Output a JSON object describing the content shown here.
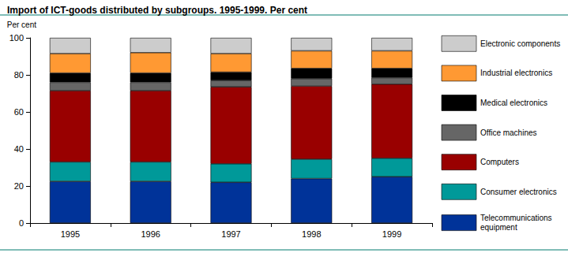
{
  "chart_data": {
    "type": "bar",
    "title": "Import of ICT-goods distributed by subgroups. 1995-1999. Per cent",
    "y_label": "Per cent",
    "categories": [
      "1995",
      "1996",
      "1997",
      "1998",
      "1999"
    ],
    "stacked": true,
    "grid": false,
    "legend": "right",
    "ylim": [
      0,
      100
    ],
    "yticks": [
      0,
      20,
      40,
      60,
      80,
      100
    ],
    "series": [
      {
        "name": "Telecommunications equipment",
        "color": "#003399",
        "values": [
          22.5,
          22.5,
          22,
          24,
          25
        ]
      },
      {
        "name": "Consumer electronics",
        "color": "#009999",
        "values": [
          10.5,
          10.5,
          10,
          10.5,
          10
        ]
      },
      {
        "name": "Computers",
        "color": "#990000",
        "values": [
          38.5,
          38.5,
          41.5,
          39.5,
          40
        ]
      },
      {
        "name": "Office machines",
        "color": "#666666",
        "values": [
          4.5,
          4.5,
          3.5,
          4,
          3.5
        ]
      },
      {
        "name": "Medical electronics",
        "color": "#000000",
        "values": [
          5,
          5,
          4.5,
          5.5,
          5
        ]
      },
      {
        "name": "Industrial electronics",
        "color": "#ff9933",
        "values": [
          10.5,
          11,
          10,
          9.5,
          9.5
        ]
      },
      {
        "name": "Electronic components",
        "color": "#cccccc",
        "values": [
          8.5,
          8,
          8.5,
          7,
          7
        ]
      }
    ]
  }
}
